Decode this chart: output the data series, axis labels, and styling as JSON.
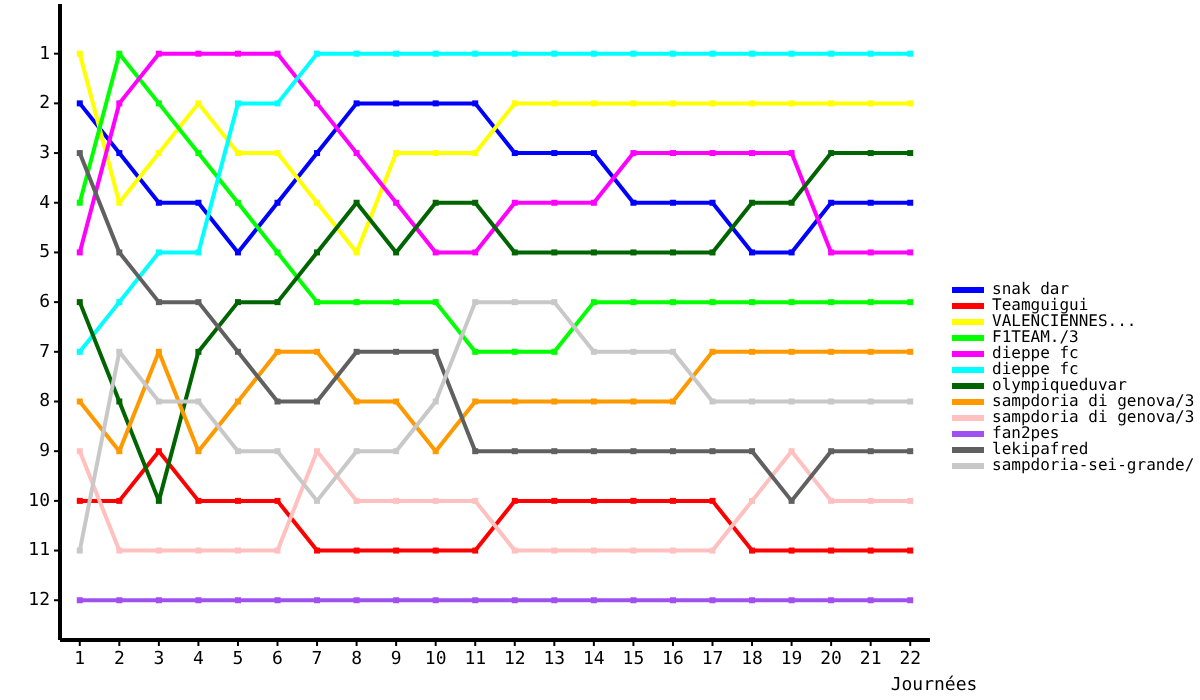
{
  "chart_data": {
    "type": "line",
    "xlabel": "Journées",
    "x": [
      1,
      2,
      3,
      4,
      5,
      6,
      7,
      8,
      9,
      10,
      11,
      12,
      13,
      14,
      15,
      16,
      17,
      18,
      19,
      20,
      21,
      22
    ],
    "xlim": [
      0.5,
      22.5
    ],
    "xticks": [
      1,
      2,
      3,
      4,
      5,
      6,
      7,
      8,
      9,
      10,
      11,
      12,
      13,
      14,
      15,
      16,
      17,
      18,
      19,
      20,
      21,
      22
    ],
    "ylim": [
      12.8,
      0
    ],
    "yticks": [
      1,
      2,
      3,
      4,
      5,
      6,
      7,
      8,
      9,
      10,
      11,
      12
    ],
    "grid": false,
    "legend": "right",
    "marker": "square",
    "line_style": "solid",
    "series": [
      {
        "name": "snak dar",
        "color": "#0000ff",
        "values": [
          2,
          3,
          4,
          4,
          5,
          4,
          3,
          2,
          2,
          2,
          2,
          3,
          3,
          3,
          4,
          4,
          4,
          5,
          5,
          4,
          4,
          4
        ]
      },
      {
        "name": "Teamguigui",
        "color": "#ff0000",
        "values": [
          10,
          10,
          9,
          10,
          10,
          10,
          11,
          11,
          11,
          11,
          11,
          10,
          10,
          10,
          10,
          10,
          10,
          11,
          11,
          11,
          11,
          11
        ]
      },
      {
        "name": "VALENCIENNES...",
        "color": "#ffff00",
        "values": [
          1,
          4,
          3,
          2,
          3,
          3,
          4,
          5,
          3,
          3,
          3,
          2,
          2,
          2,
          2,
          2,
          2,
          2,
          2,
          2,
          2,
          2
        ]
      },
      {
        "name": "F1TEAM./3",
        "color": "#00ff00",
        "values": [
          4,
          1,
          2,
          3,
          4,
          5,
          6,
          6,
          6,
          6,
          7,
          7,
          7,
          6,
          6,
          6,
          6,
          6,
          6,
          6,
          6,
          6
        ]
      },
      {
        "name": "dieppe fc",
        "color": "#ff00ff",
        "values": [
          5,
          2,
          1,
          1,
          1,
          1,
          2,
          3,
          4,
          5,
          5,
          4,
          4,
          4,
          3,
          3,
          3,
          3,
          3,
          5,
          5,
          5
        ]
      },
      {
        "name": "dieppe fc",
        "color": "#00ffff",
        "values": [
          7,
          6,
          5,
          5,
          2,
          2,
          1,
          1,
          1,
          1,
          1,
          1,
          1,
          1,
          1,
          1,
          1,
          1,
          1,
          1,
          1,
          1
        ]
      },
      {
        "name": "olympiqueduvar",
        "color": "#006400",
        "values": [
          6,
          8,
          10,
          7,
          6,
          6,
          5,
          4,
          5,
          4,
          4,
          5,
          5,
          5,
          5,
          5,
          5,
          4,
          4,
          3,
          3,
          3
        ]
      },
      {
        "name": "sampdoria di genova/3",
        "color": "#ff9900",
        "values": [
          8,
          9,
          7,
          9,
          8,
          7,
          7,
          8,
          8,
          9,
          8,
          8,
          8,
          8,
          8,
          8,
          7,
          7,
          7,
          7,
          7,
          7
        ]
      },
      {
        "name": "sampdoria di genova/3",
        "color": "#ffc0c0",
        "values": [
          9,
          11,
          11,
          11,
          11,
          11,
          9,
          10,
          10,
          10,
          10,
          11,
          11,
          11,
          11,
          11,
          11,
          10,
          9,
          10,
          10,
          10
        ]
      },
      {
        "name": "fan2pes",
        "color": "#a050f0",
        "values": [
          12,
          12,
          12,
          12,
          12,
          12,
          12,
          12,
          12,
          12,
          12,
          12,
          12,
          12,
          12,
          12,
          12,
          12,
          12,
          12,
          12,
          12
        ]
      },
      {
        "name": "lekipafred",
        "color": "#606060",
        "values": [
          3,
          5,
          6,
          6,
          7,
          8,
          8,
          7,
          7,
          7,
          9,
          9,
          9,
          9,
          9,
          9,
          9,
          9,
          10,
          9,
          9,
          9
        ]
      },
      {
        "name": "sampdoria-sei-grande/",
        "color": "#c8c8c8",
        "values": [
          11,
          7,
          8,
          8,
          9,
          9,
          10,
          9,
          9,
          8,
          6,
          6,
          6,
          7,
          7,
          7,
          8,
          8,
          8,
          8,
          8,
          8
        ]
      }
    ]
  }
}
